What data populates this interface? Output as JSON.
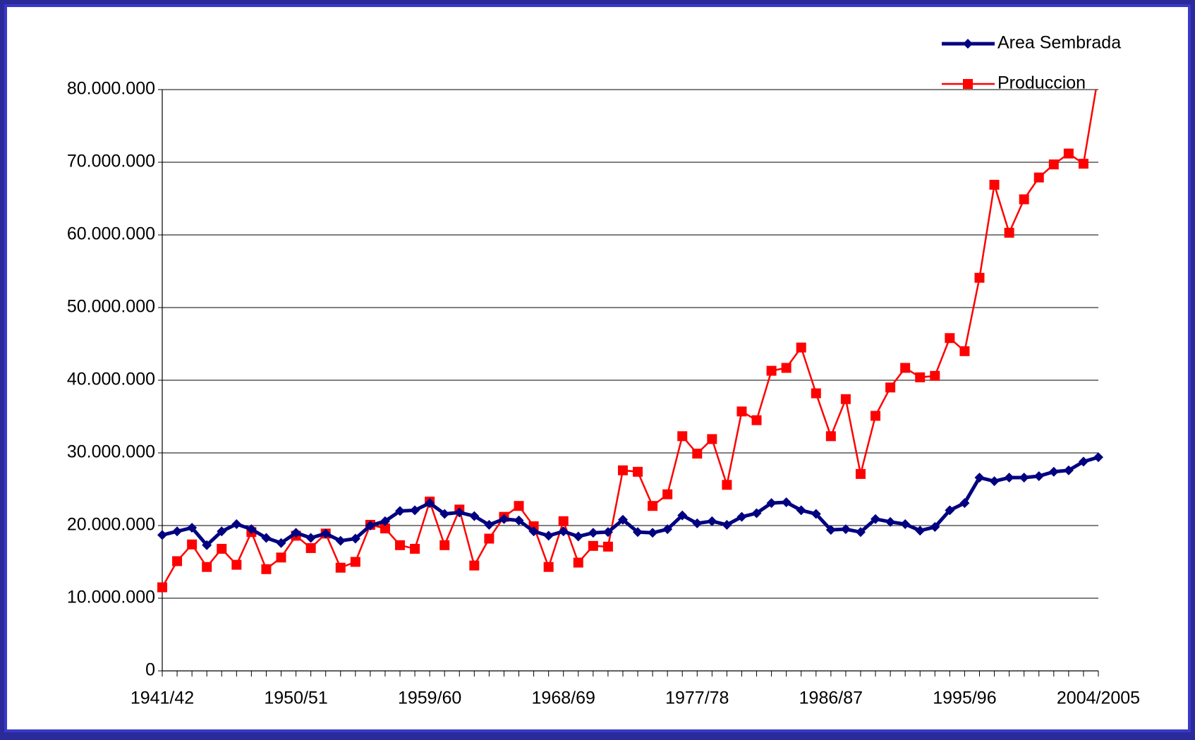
{
  "chart_data": {
    "type": "line",
    "categories": [
      "1941/42",
      null,
      null,
      null,
      null,
      null,
      null,
      null,
      null,
      "1950/51",
      null,
      null,
      null,
      null,
      null,
      null,
      null,
      null,
      "1959/60",
      null,
      null,
      null,
      null,
      null,
      null,
      null,
      null,
      "1968/69",
      null,
      null,
      null,
      null,
      null,
      null,
      null,
      null,
      "1977/78",
      null,
      null,
      null,
      null,
      null,
      null,
      null,
      null,
      "1986/87",
      null,
      null,
      null,
      null,
      null,
      null,
      null,
      null,
      "1995/96",
      null,
      null,
      null,
      null,
      null,
      null,
      null,
      null,
      "2004/2005"
    ],
    "series": [
      {
        "name": "Area Sembrada",
        "color": "#000080",
        "marker": "diamond",
        "values": [
          18700000,
          19200000,
          19700000,
          17300000,
          19200000,
          20200000,
          19500000,
          18300000,
          17600000,
          19000000,
          18300000,
          18900000,
          17900000,
          18200000,
          20000000,
          20600000,
          22000000,
          22100000,
          23100000,
          21600000,
          21800000,
          21300000,
          20100000,
          20900000,
          20700000,
          19200000,
          18600000,
          19200000,
          18500000,
          19000000,
          19100000,
          20800000,
          19100000,
          19000000,
          19500000,
          21400000,
          20300000,
          20600000,
          20100000,
          21200000,
          21700000,
          23100000,
          23200000,
          22100000,
          21600000,
          19400000,
          19500000,
          19100000,
          20900000,
          20500000,
          20200000,
          19300000,
          19800000,
          22100000,
          23100000,
          26600000,
          26100000,
          26600000,
          26600000,
          26800000,
          27400000,
          27600000,
          28800000,
          29400000
        ]
      },
      {
        "name": "Produccion",
        "color": "#ff0000",
        "marker": "square",
        "values": [
          11500000,
          15100000,
          17400000,
          14300000,
          16800000,
          14600000,
          19100000,
          14000000,
          15600000,
          18600000,
          16900000,
          18900000,
          14200000,
          15000000,
          20100000,
          19600000,
          17300000,
          16800000,
          23300000,
          17300000,
          22200000,
          14500000,
          18200000,
          21200000,
          22700000,
          19900000,
          14300000,
          20600000,
          14900000,
          17200000,
          17100000,
          27600000,
          27400000,
          22700000,
          24300000,
          32300000,
          29900000,
          31900000,
          25600000,
          35700000,
          34500000,
          41300000,
          41700000,
          44500000,
          38200000,
          32300000,
          37400000,
          27100000,
          35100000,
          39000000,
          41700000,
          40400000,
          40600000,
          45800000,
          44000000,
          54100000,
          66900000,
          60300000,
          64900000,
          67900000,
          69700000,
          71200000,
          69800000,
          82000000
        ]
      }
    ],
    "ylim": [
      0,
      80000000
    ],
    "yticks": [
      0,
      {
        "value": 10000000,
        "label": "10.000.000"
      },
      {
        "value": 20000000,
        "label": "20.000.000"
      },
      {
        "value": 30000000,
        "label": "30.000.000"
      },
      {
        "value": 40000000,
        "label": "40.000.000"
      },
      {
        "value": 50000000,
        "label": "50.000.000"
      },
      {
        "value": 60000000,
        "label": "60.000.000"
      },
      {
        "value": 70000000,
        "label": "70.000.000"
      },
      {
        "value": 80000000,
        "label": "80.000.000"
      }
    ],
    "grid": true,
    "legend": "top-right"
  }
}
